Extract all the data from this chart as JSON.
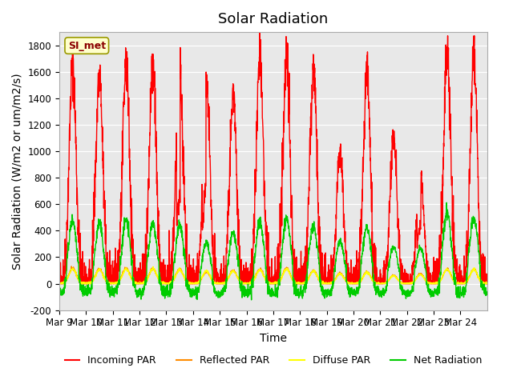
{
  "title": "Solar Radiation",
  "ylabel": "Solar Radiation (W/m2 or um/m2/s)",
  "xlabel": "Time",
  "ylim": [
    -200,
    1900
  ],
  "yticks": [
    -200,
    0,
    200,
    400,
    600,
    800,
    1000,
    1200,
    1400,
    1600,
    1800
  ],
  "x_tick_labels": [
    "Mar 9",
    "Mar 10",
    "Mar 11",
    "Mar 12",
    "Mar 13",
    "Mar 14",
    "Mar 15",
    "Mar 16",
    "Mar 17",
    "Mar 18",
    "Mar 19",
    "Mar 20",
    "Mar 21",
    "Mar 22",
    "Mar 23",
    "Mar 24"
  ],
  "station_label": "SI_met",
  "colors": {
    "incoming": "#ff0000",
    "reflected": "#ff8c00",
    "diffuse": "#ffff00",
    "net": "#00cc00"
  },
  "bg_color": "#e8e8e8",
  "line_width": 1.0,
  "title_fontsize": 13,
  "label_fontsize": 10,
  "tick_fontsize": 8.5,
  "legend_fontsize": 9
}
